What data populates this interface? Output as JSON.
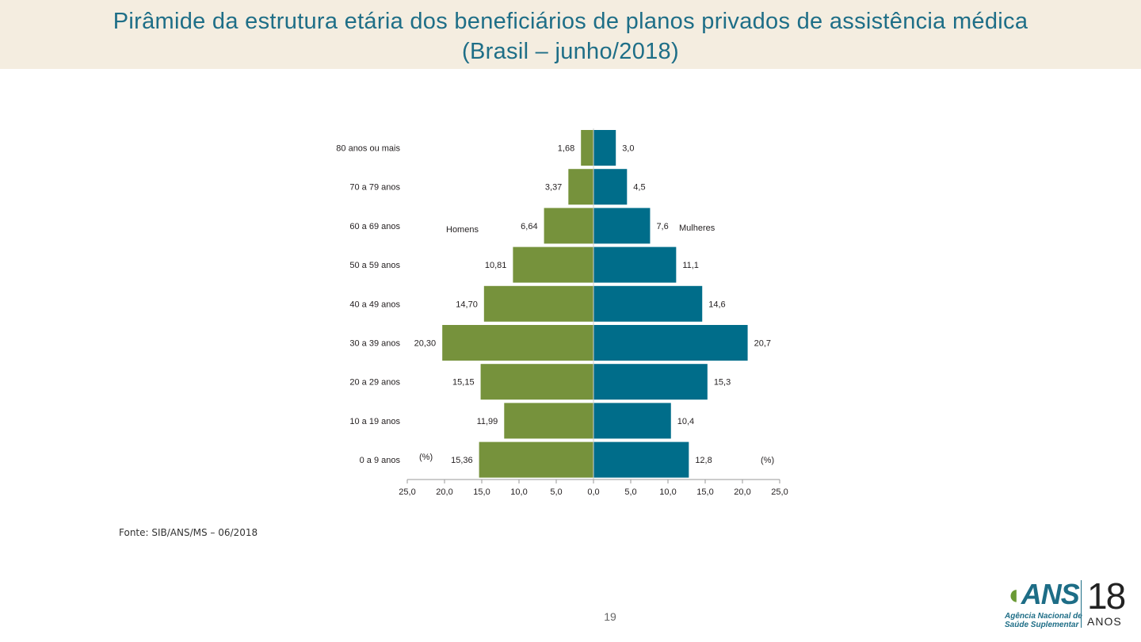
{
  "slide": {
    "title_line1": "Pirâmide da estrutura etária dos beneficiários de planos privados de assistência médica",
    "title_line2": "(Brasil – junho/2018)",
    "source": "Fonte: SIB/ANS/MS – 06/2018",
    "page_number": "19"
  },
  "logo": {
    "mark": "ANS",
    "subtitle_line1": "Agência Nacional de",
    "subtitle_line2": "Saúde Suplementar",
    "anniversary": "18",
    "anniversary_label": "ANOS"
  },
  "colors": {
    "title": "#1e6e87",
    "title_band": "#f4ede0",
    "men": "#76923c",
    "women": "#006d8a"
  },
  "chart_data": {
    "type": "bar",
    "orientation": "horizontal-population-pyramid",
    "categories": [
      "80 anos ou mais",
      "70 a 79 anos",
      "60 a 69 anos",
      "50 a 59 anos",
      "40 a 49 anos",
      "30 a 39 anos",
      "20 a 29 anos",
      "10 a 19 anos",
      "0 a 9 anos"
    ],
    "series": [
      {
        "name": "Homens",
        "side": "left",
        "values": [
          1.68,
          3.37,
          6.64,
          10.81,
          14.7,
          20.3,
          15.15,
          11.99,
          15.36
        ],
        "labels": [
          "1,68",
          "3,37",
          "6,64",
          "10,81",
          "14,70",
          "20,30",
          "15,15",
          "11,99",
          "15,36"
        ]
      },
      {
        "name": "Mulheres",
        "side": "right",
        "values": [
          3.0,
          4.5,
          7.6,
          11.1,
          14.6,
          20.7,
          15.3,
          10.4,
          12.8
        ],
        "labels": [
          "3,0",
          "4,5",
          "7,6",
          "11,1",
          "14,6",
          "20,7",
          "15,3",
          "10,4",
          "12,8"
        ]
      }
    ],
    "x_ticks": [
      "25,0",
      "20,0",
      "15,0",
      "10,0",
      "5,0",
      "0,0",
      "5,0",
      "10,0",
      "15,0",
      "20,0",
      "25,0"
    ],
    "xlim": [
      -25,
      25
    ],
    "unit_left": "(%)",
    "unit_right": "(%)",
    "grid": false
  }
}
